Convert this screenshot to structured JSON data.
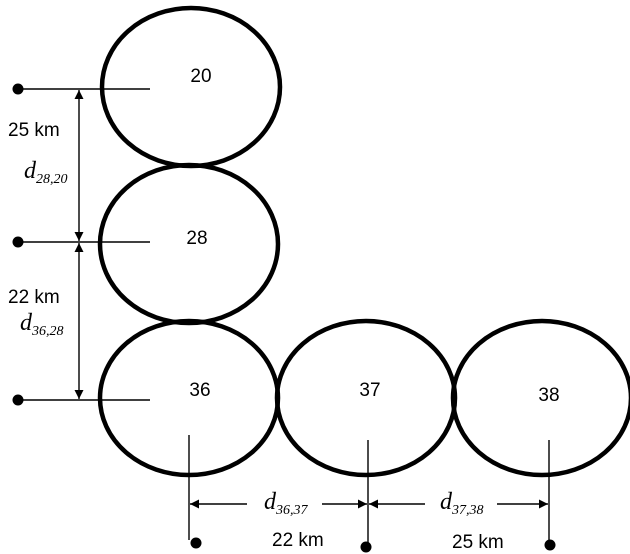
{
  "cells": [
    {
      "id": "20",
      "label": "20"
    },
    {
      "id": "28",
      "label": "28"
    },
    {
      "id": "36",
      "label": "36"
    },
    {
      "id": "37",
      "label": "37"
    },
    {
      "id": "38",
      "label": "38"
    }
  ],
  "distances": {
    "d_28_20": {
      "symbol": "d",
      "subscript": "28,20",
      "value": "25 km"
    },
    "d_36_28": {
      "symbol": "d",
      "subscript": "36,28",
      "value": "22 km"
    },
    "d_36_37": {
      "symbol": "d",
      "subscript": "36,37",
      "value": "22 km"
    },
    "d_37_38": {
      "symbol": "d",
      "subscript": "37,38",
      "value": "25 km"
    }
  }
}
